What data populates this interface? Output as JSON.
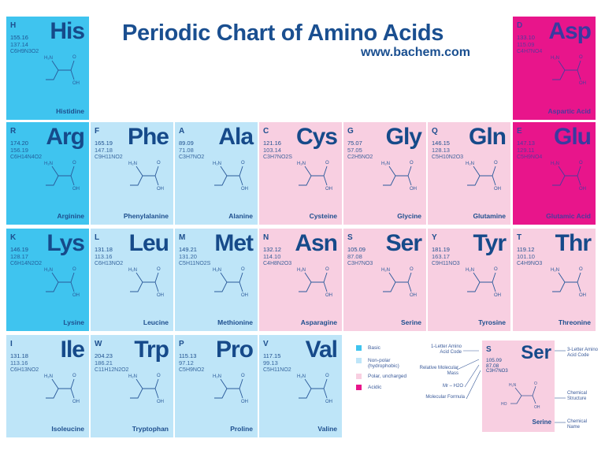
{
  "header": {
    "title": "Periodic Chart of Amino Acids",
    "url": "www.bachem.com"
  },
  "colors": {
    "basic": "#3fc4ef",
    "nonpolar": "#bee5f8",
    "polar": "#f8cfe1",
    "acidic": "#e8158b",
    "text": "#1e4f8e"
  },
  "amino_acids": [
    {
      "code1": "H",
      "code3": "His",
      "mass": "155.16",
      "mass_minus_water": "137.14",
      "formula": "C6H9N3O2",
      "name": "Histidine",
      "class": "basic"
    },
    {
      "code1": "D",
      "code3": "Asp",
      "mass": "133.10",
      "mass_minus_water": "115.09",
      "formula": "C4H7NO4",
      "name": "Aspartic Acid",
      "class": "acidic"
    },
    {
      "code1": "R",
      "code3": "Arg",
      "mass": "174.20",
      "mass_minus_water": "156.19",
      "formula": "C6H14N4O2",
      "name": "Arginine",
      "class": "basic"
    },
    {
      "code1": "F",
      "code3": "Phe",
      "mass": "165.19",
      "mass_minus_water": "147.18",
      "formula": "C9H11NO2",
      "name": "Phenylalanine",
      "class": "nonpolar"
    },
    {
      "code1": "A",
      "code3": "Ala",
      "mass": "89.09",
      "mass_minus_water": "71.08",
      "formula": "C3H7NO2",
      "name": "Alanine",
      "class": "nonpolar"
    },
    {
      "code1": "C",
      "code3": "Cys",
      "mass": "121.16",
      "mass_minus_water": "103.14",
      "formula": "C3H7NO2S",
      "name": "Cysteine",
      "class": "polar"
    },
    {
      "code1": "G",
      "code3": "Gly",
      "mass": "75.07",
      "mass_minus_water": "57.05",
      "formula": "C2H5NO2",
      "name": "Glycine",
      "class": "polar"
    },
    {
      "code1": "Q",
      "code3": "Gln",
      "mass": "146.15",
      "mass_minus_water": "128.13",
      "formula": "C5H10N2O3",
      "name": "Glutamine",
      "class": "polar"
    },
    {
      "code1": "E",
      "code3": "Glu",
      "mass": "147.13",
      "mass_minus_water": "129.11",
      "formula": "C5H9NO4",
      "name": "Glutamic Acid",
      "class": "acidic"
    },
    {
      "code1": "K",
      "code3": "Lys",
      "mass": "146.19",
      "mass_minus_water": "128.17",
      "formula": "C6H14N2O2",
      "name": "Lysine",
      "class": "basic"
    },
    {
      "code1": "L",
      "code3": "Leu",
      "mass": "131.18",
      "mass_minus_water": "113.16",
      "formula": "C6H13NO2",
      "name": "Leucine",
      "class": "nonpolar"
    },
    {
      "code1": "M",
      "code3": "Met",
      "mass": "149.21",
      "mass_minus_water": "131.20",
      "formula": "C5H11NO2S",
      "name": "Methionine",
      "class": "nonpolar"
    },
    {
      "code1": "N",
      "code3": "Asn",
      "mass": "132.12",
      "mass_minus_water": "114.10",
      "formula": "C4H8N2O3",
      "name": "Asparagine",
      "class": "polar"
    },
    {
      "code1": "S",
      "code3": "Ser",
      "mass": "105.09",
      "mass_minus_water": "87.08",
      "formula": "C3H7NO3",
      "name": "Serine",
      "class": "polar"
    },
    {
      "code1": "Y",
      "code3": "Tyr",
      "mass": "181.19",
      "mass_minus_water": "163.17",
      "formula": "C9H11NO3",
      "name": "Tyrosine",
      "class": "polar"
    },
    {
      "code1": "T",
      "code3": "Thr",
      "mass": "119.12",
      "mass_minus_water": "101.10",
      "formula": "C4H9NO3",
      "name": "Threonine",
      "class": "polar"
    },
    {
      "code1": "I",
      "code3": "Ile",
      "mass": "131.18",
      "mass_minus_water": "113.16",
      "formula": "C6H13NO2",
      "name": "Isoleucine",
      "class": "nonpolar"
    },
    {
      "code1": "W",
      "code3": "Trp",
      "mass": "204.23",
      "mass_minus_water": "186.21",
      "formula": "C11H12N2O2",
      "name": "Tryptophan",
      "class": "nonpolar"
    },
    {
      "code1": "P",
      "code3": "Pro",
      "mass": "115.13",
      "mass_minus_water": "97.12",
      "formula": "C5H9NO2",
      "name": "Proline",
      "class": "nonpolar"
    },
    {
      "code1": "V",
      "code3": "Val",
      "mass": "117.15",
      "mass_minus_water": "99.13",
      "formula": "C5H11NO2",
      "name": "Valine",
      "class": "nonpolar"
    }
  ],
  "legend": {
    "items": [
      {
        "label": "Basic",
        "class": "basic"
      },
      {
        "label": "Non-polar (hydrophobic)",
        "class": "nonpolar"
      },
      {
        "label": "Polar, uncharged",
        "class": "polar"
      },
      {
        "label": "Acidic",
        "class": "acidic"
      }
    ],
    "example": {
      "code1": "S",
      "code3": "Ser",
      "mass": "105.09",
      "mass_minus_water": "87.08",
      "formula": "C3H7NO3",
      "name": "Serine"
    },
    "annotations": {
      "one_letter": "1-Letter Amino Acid Code",
      "rel_mass": "Relative Molecular Mass",
      "mr_water": "Mr – H2O",
      "formula": "Molecular Formula",
      "three_letter": "3-Letter Amino Acid Code",
      "structure": "Chemical Structure",
      "name": "Chemical Name"
    }
  }
}
